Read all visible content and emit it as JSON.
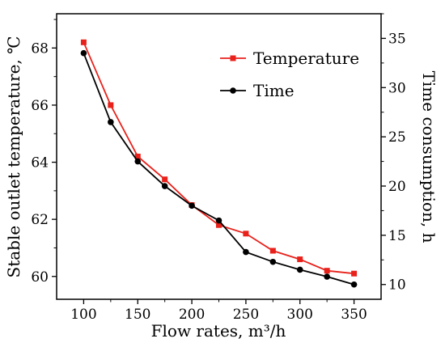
{
  "chart_data": {
    "type": "line",
    "xlabel": "Flow rates, m³/h",
    "ylabel_left": "Stable outlet temperature, ℃",
    "ylabel_right": "Time consumption, h",
    "x_ticks": [
      100,
      150,
      200,
      250,
      300,
      350
    ],
    "y_left_ticks": [
      60,
      62,
      64,
      66,
      68
    ],
    "y_right_ticks": [
      10,
      15,
      20,
      25,
      30,
      35
    ],
    "xlim": [
      75,
      375
    ],
    "y_left_lim": [
      59.2,
      69.2
    ],
    "y_right_lim": [
      8.5,
      37.5
    ],
    "x": [
      100,
      125,
      150,
      175,
      200,
      225,
      250,
      275,
      300,
      325,
      350
    ],
    "series": [
      {
        "name": "Temperature",
        "axis": "left",
        "color": "#e8211b",
        "marker": "square",
        "values": [
          68.2,
          66.0,
          64.2,
          63.4,
          62.5,
          61.8,
          61.5,
          60.9,
          60.6,
          60.2,
          60.1
        ]
      },
      {
        "name": "Time",
        "axis": "right",
        "color": "#000000",
        "marker": "circle",
        "values": [
          33.5,
          26.5,
          22.5,
          20.0,
          18.0,
          16.5,
          13.3,
          12.3,
          11.5,
          10.8,
          10.0
        ]
      }
    ],
    "legend_position": "top-right",
    "grid": false
  }
}
